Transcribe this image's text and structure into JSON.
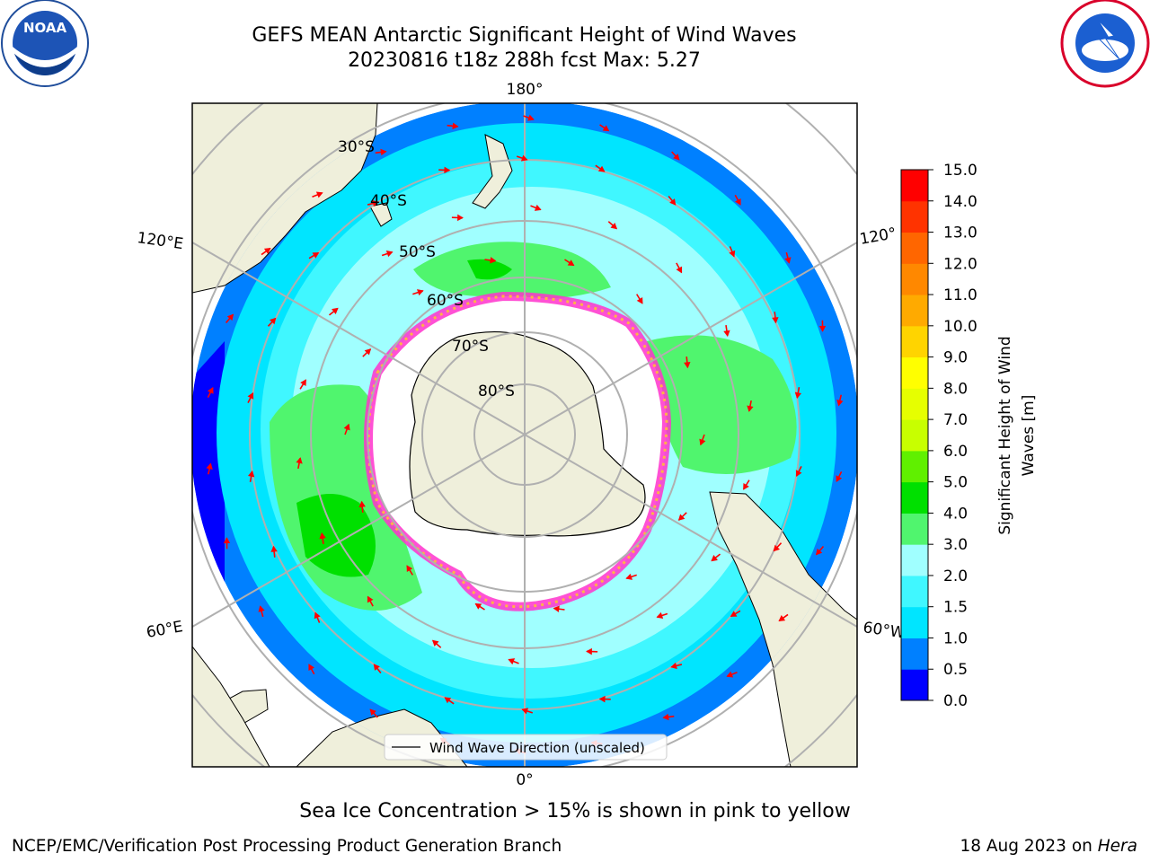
{
  "title": {
    "line1": "GEFS MEAN Antarctic Significant Height of Wind Waves",
    "line2": "20230816 t18z 288h fcst   Max: 5.27"
  },
  "logos": {
    "left": {
      "icon": "noaa-logo",
      "text": "NOAA"
    },
    "right": {
      "icon": "nws-logo",
      "text": "NATIONAL WEATHER SERVICE"
    }
  },
  "map": {
    "projection": "south-polar-stereographic",
    "longitude_labels": {
      "top": "180°",
      "bottom": "0°",
      "upper_left": "120°E",
      "upper_right": "120°",
      "lower_left": "60°E",
      "lower_right": "60°W"
    },
    "latitude_labels": [
      "30°S",
      "40°S",
      "50°S",
      "60°S",
      "70°S",
      "80°S"
    ],
    "legend": "Wind Wave Direction (unscaled)",
    "colors": {
      "land": "#efefdb",
      "arrow": "#ff0000",
      "grid": "#b0b0b0",
      "sea_ice": "#ff33cc"
    }
  },
  "colorbar": {
    "label_line1": "Significant Height of Wind",
    "label_line2": "Waves [m]",
    "ticks": [
      "0.0",
      "0.5",
      "1.0",
      "1.5",
      "2.0",
      "3.0",
      "4.0",
      "5.0",
      "6.0",
      "7.0",
      "8.0",
      "9.0",
      "10.0",
      "11.0",
      "12.0",
      "13.0",
      "14.0",
      "15.0"
    ],
    "colors": [
      "#0000ff",
      "#0080ff",
      "#00e5ff",
      "#40f7ff",
      "#a0ffff",
      "#50f56e",
      "#00e000",
      "#60f000",
      "#c8ff00",
      "#e6ff00",
      "#ffff00",
      "#ffd400",
      "#ffaa00",
      "#ff8800",
      "#ff6600",
      "#ff3300",
      "#ff0000"
    ]
  },
  "note": "Sea Ice Concentration > 15% is shown in pink to yellow",
  "footer": {
    "left": "NCEP/EMC/Verification Post Processing Product Generation Branch",
    "right_prefix": "18 Aug 2023 on ",
    "right_host": "Hera"
  }
}
